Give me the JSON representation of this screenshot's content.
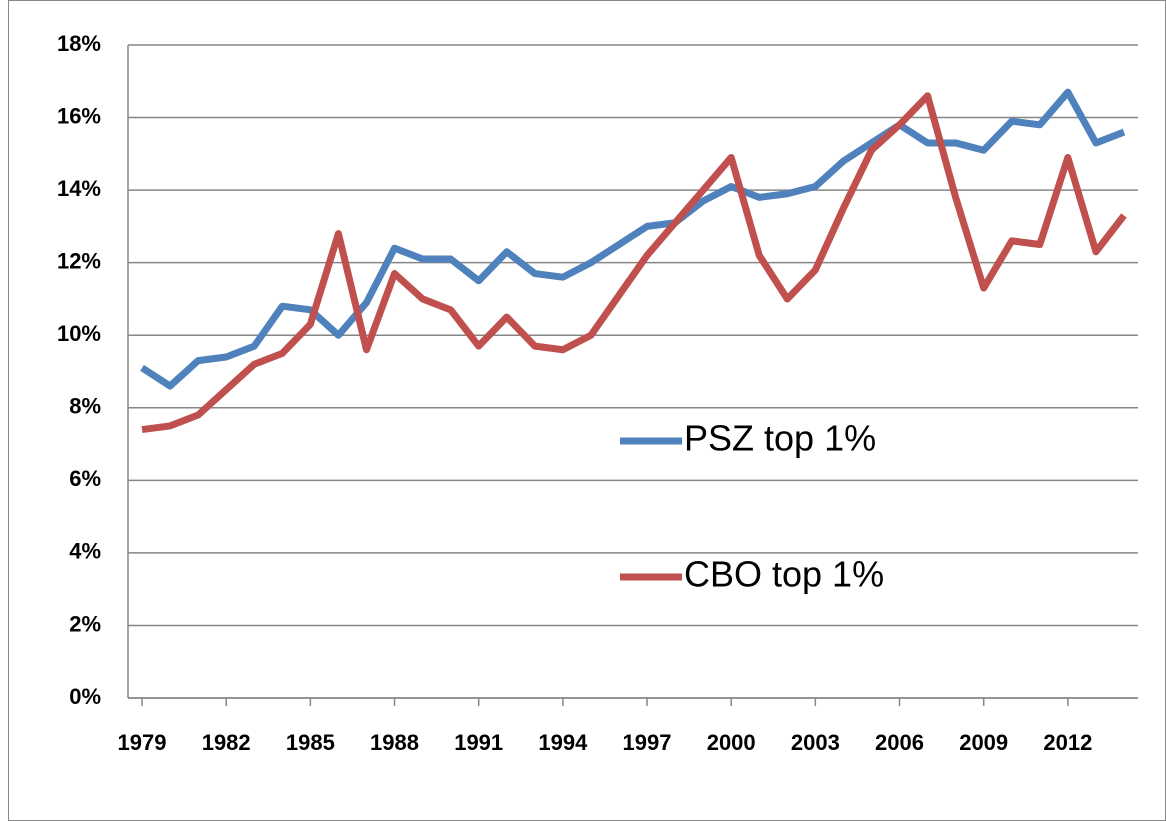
{
  "chart_data": {
    "type": "line",
    "x": [
      1979,
      1980,
      1981,
      1982,
      1983,
      1984,
      1985,
      1986,
      1987,
      1988,
      1989,
      1990,
      1991,
      1992,
      1993,
      1994,
      1995,
      1996,
      1997,
      1998,
      1999,
      2000,
      2001,
      2002,
      2003,
      2004,
      2005,
      2006,
      2007,
      2008,
      2009,
      2010,
      2011,
      2012,
      2013,
      2014
    ],
    "xlim": [
      1978.5,
      2014.5
    ],
    "xticks": [
      1979,
      1982,
      1985,
      1988,
      1991,
      1994,
      1997,
      2000,
      2003,
      2006,
      2009,
      2012
    ],
    "ylim": [
      0,
      18
    ],
    "yticks": [
      {
        "value": 0,
        "label": "0%"
      },
      {
        "value": 2,
        "label": "2%"
      },
      {
        "value": 4,
        "label": "4%"
      },
      {
        "value": 6,
        "label": "6%"
      },
      {
        "value": 8,
        "label": "8%"
      },
      {
        "value": 10,
        "label": "10%"
      },
      {
        "value": 12,
        "label": "12%"
      },
      {
        "value": 14,
        "label": "14%"
      },
      {
        "value": 16,
        "label": "16%"
      },
      {
        "value": 18,
        "label": "18%"
      }
    ],
    "grid": true,
    "legend": "inside",
    "series": [
      {
        "name": "PSZ top 1%",
        "color": "#4f81bd",
        "values": [
          9.1,
          8.6,
          9.3,
          9.4,
          9.7,
          10.8,
          10.7,
          10.0,
          10.9,
          12.4,
          12.1,
          12.1,
          11.5,
          12.3,
          11.7,
          11.6,
          12.0,
          12.5,
          13.0,
          13.1,
          13.7,
          14.1,
          13.8,
          13.9,
          14.1,
          14.8,
          15.3,
          15.8,
          15.3,
          15.3,
          15.1,
          15.9,
          15.8,
          16.7,
          15.3,
          15.6
        ]
      },
      {
        "name": "CBO top 1%",
        "color": "#c0504d",
        "values": [
          7.4,
          7.5,
          7.8,
          8.5,
          9.2,
          9.5,
          10.3,
          12.8,
          9.6,
          11.7,
          11.0,
          10.7,
          9.7,
          10.5,
          9.7,
          9.6,
          10.0,
          11.1,
          12.2,
          13.1,
          14.0,
          14.9,
          12.2,
          11.0,
          11.8,
          13.5,
          15.1,
          15.8,
          16.6,
          13.8,
          11.3,
          12.6,
          12.5,
          14.9,
          12.3,
          13.3
        ]
      }
    ]
  }
}
